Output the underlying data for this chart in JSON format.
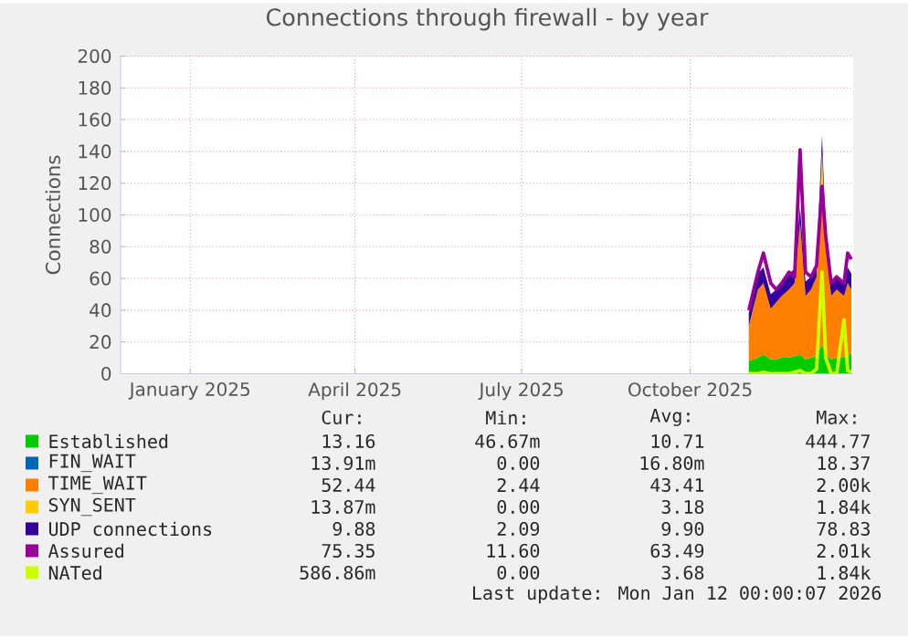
{
  "chart_data": {
    "type": "area",
    "title": "Connections through firewall - by year",
    "ylabel": "Connections",
    "stacked": true,
    "grid": true,
    "legend": "bottom",
    "xlim": [
      "2024-12-08",
      "2026-01-12"
    ],
    "ylim": [
      0,
      200
    ],
    "xticks": [
      {
        "value": "2025-01-15",
        "label": "January 2025"
      },
      {
        "value": "2025-04-15",
        "label": "April 2025"
      },
      {
        "value": "2025-07-15",
        "label": "July 2025"
      },
      {
        "value": "2025-10-15",
        "label": "October 2025"
      }
    ],
    "yticks": [
      0,
      20,
      40,
      60,
      80,
      100,
      120,
      140,
      160,
      180,
      200
    ],
    "x": [
      "2025-11-16",
      "2025-11-21",
      "2025-11-24",
      "2025-11-28",
      "2025-12-01",
      "2025-12-04",
      "2025-12-08",
      "2025-12-11",
      "2025-12-14",
      "2025-12-17",
      "2025-12-20",
      "2025-12-23",
      "2025-12-26",
      "2025-12-28",
      "2025-12-31",
      "2026-01-03",
      "2026-01-07",
      "2026-01-09",
      "2026-01-11"
    ],
    "series": [
      {
        "name": "Established",
        "color": "#00cc00",
        "values": [
          8,
          10,
          12,
          9,
          9,
          10,
          10,
          11,
          12,
          9,
          10,
          11,
          18,
          12,
          9,
          10,
          10,
          11,
          13
        ]
      },
      {
        "name": "FIN_WAIT",
        "color": "#0066b3",
        "values": [
          null,
          null,
          null,
          null,
          null,
          null,
          null,
          null,
          null,
          null,
          null,
          null,
          null,
          null,
          null,
          null,
          null,
          null,
          null
        ]
      },
      {
        "name": "TIME_WAIT",
        "color": "#ff8000",
        "values": [
          22,
          43,
          45,
          32,
          36,
          39,
          43,
          46,
          83,
          40,
          43,
          50,
          92,
          68,
          40,
          43,
          39,
          46,
          40
        ]
      },
      {
        "name": "SYN_SENT",
        "color": "#ffcc00",
        "values": [
          null,
          null,
          null,
          null,
          null,
          null,
          null,
          null,
          null,
          null,
          null,
          0,
          30,
          0,
          null,
          null,
          null,
          null,
          null
        ]
      },
      {
        "name": "UDP connections",
        "color": "#330099",
        "values": [
          8,
          10,
          10,
          9,
          8,
          8,
          10,
          9,
          10,
          9,
          8,
          8,
          10,
          9,
          8,
          8,
          8,
          10,
          10
        ]
      },
      {
        "name": "Assured",
        "color": "#990099",
        "type": "line",
        "values": [
          40,
          64,
          76,
          57,
          53,
          57,
          64,
          61,
          141,
          64,
          61,
          68,
          118,
          87,
          57,
          61,
          57,
          76,
          72
        ]
      },
      {
        "name": "NATed",
        "color": "#ccff00",
        "type": "line",
        "values": [
          0,
          0,
          1,
          0,
          0,
          0,
          0,
          1,
          2,
          0,
          0,
          3,
          64,
          10,
          0,
          0,
          34,
          2,
          1
        ]
      }
    ],
    "annotations": [
      "Cur:",
      "Min:",
      "Avg:",
      "Max:",
      "13.16",
      "46.67m",
      "10.71",
      "444.77",
      "13.91m",
      "0.00",
      "16.80m",
      "18.37",
      "52.44",
      "2.44",
      "43.41",
      "2.00k",
      "13.87m",
      "0.00",
      "3.18",
      "1.84k",
      "9.88",
      "2.09",
      "9.90",
      "78.83",
      "75.35",
      "11.60",
      "63.49",
      "2.01k",
      "586.86m",
      "0.00",
      "3.68",
      "1.84k",
      "Last update: Mon Jan 12 00:00:07 2026"
    ]
  }
}
